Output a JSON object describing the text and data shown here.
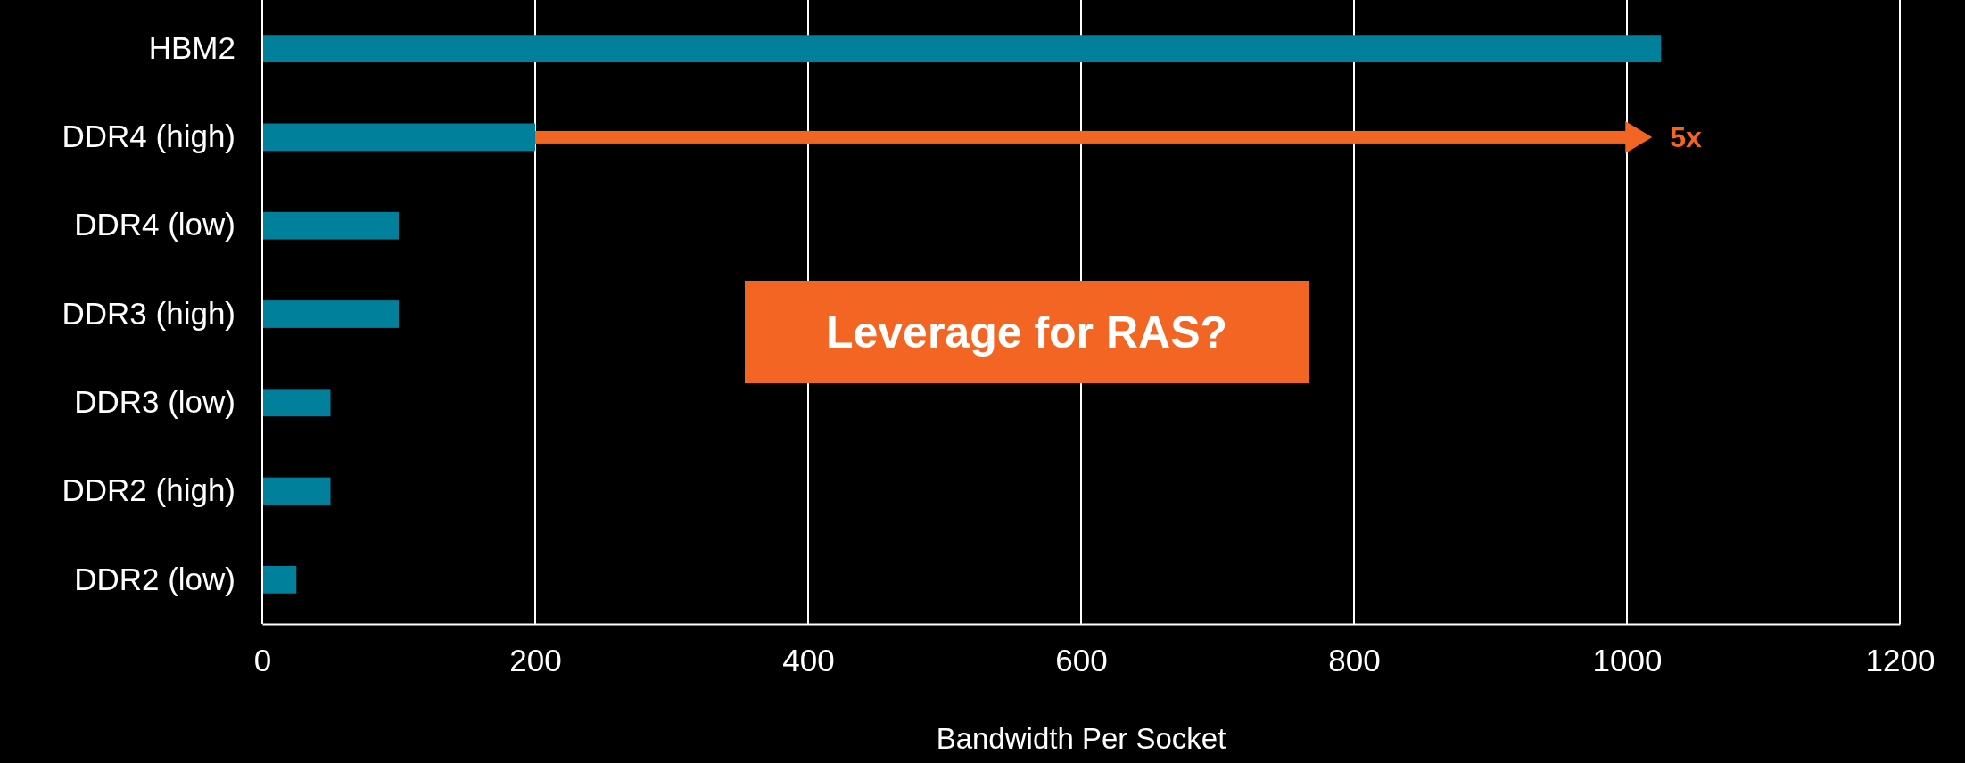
{
  "chart_data": {
    "type": "bar",
    "orientation": "horizontal",
    "xlabel": "Bandwidth Per Socket",
    "categories": [
      "HBM2",
      "DDR4 (high)",
      "DDR4 (low)",
      "DDR3 (high)",
      "DDR3 (low)",
      "DDR2 (high)",
      "DDR2 (low)"
    ],
    "values": [
      1025,
      200,
      100,
      100,
      50,
      50,
      25
    ],
    "color": "#00809a",
    "xlim": [
      0,
      1200
    ],
    "xticks": [
      0,
      200,
      400,
      600,
      800,
      1000,
      1200
    ],
    "grid": "x",
    "annotations": [
      "5x",
      "Leverage for RAS?"
    ]
  }
}
